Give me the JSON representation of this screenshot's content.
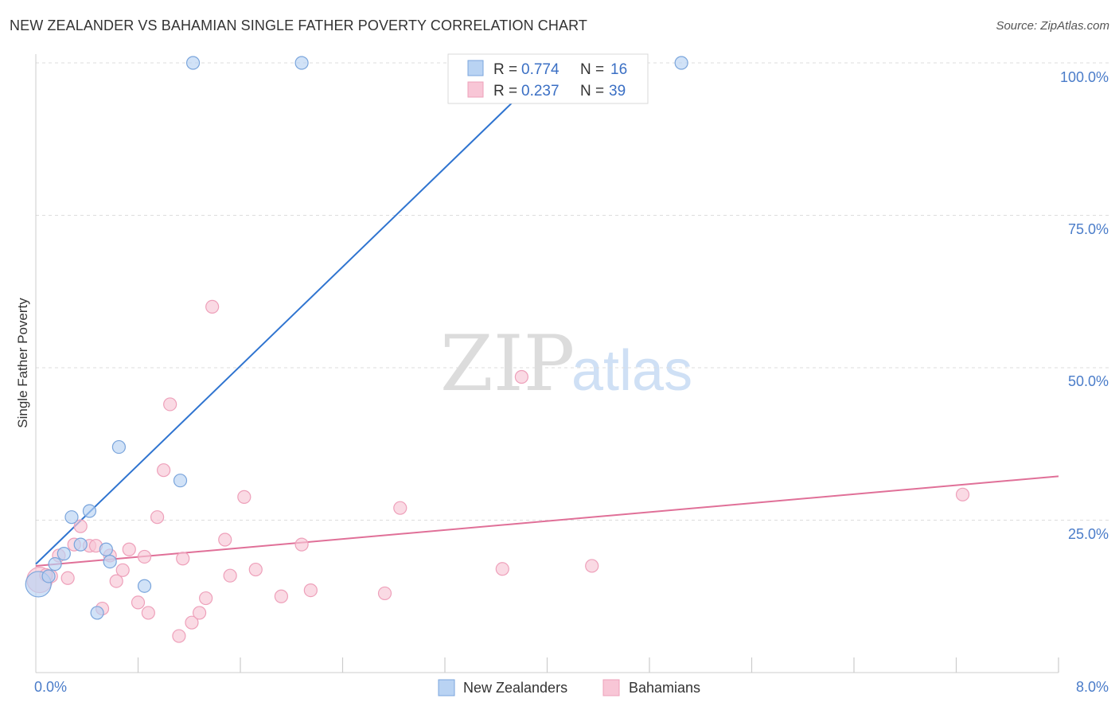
{
  "title": "NEW ZEALANDER VS BAHAMIAN SINGLE FATHER POVERTY CORRELATION CHART",
  "source": "Source: ZipAtlas.com",
  "watermark": {
    "zip": "ZIP",
    "atlas": "atlas"
  },
  "colors": {
    "blue_fill": "#b9d3f3",
    "blue_stroke": "#7aa5dc",
    "blue_line": "#2f74d0",
    "pink_fill": "#f8c6d6",
    "pink_stroke": "#eea0ba",
    "pink_line": "#e07098",
    "grid": "#dddddd",
    "tick_text": "#4a7cc9"
  },
  "legend": {
    "r_label": "R = ",
    "n_label": "N = ",
    "series": [
      {
        "r": "0.774",
        "n": "16"
      },
      {
        "r": "0.237",
        "n": "39"
      }
    ]
  },
  "bottom_legend": [
    "New Zealanders",
    "Bahamians"
  ],
  "chart_data": {
    "type": "scatter",
    "title": "NEW ZEALANDER VS BAHAMIAN SINGLE FATHER POVERTY CORRELATION CHART",
    "xlabel": "",
    "ylabel": "Single Father Poverty",
    "xlim": [
      0,
      8
    ],
    "ylim": [
      0,
      100
    ],
    "x_tick_labels": [
      "0.0%",
      "8.0%"
    ],
    "y_ticks": [
      25,
      50,
      75,
      100
    ],
    "y_tick_labels": [
      "25.0%",
      "50.0%",
      "75.0%",
      "100.0%"
    ],
    "grid": true,
    "series": [
      {
        "name": "New Zealanders",
        "r": 0.774,
        "n": 16,
        "trend": {
          "x": [
            0,
            3.9
          ],
          "y": [
            17.8,
            97
          ]
        },
        "points": [
          {
            "x": 0.02,
            "y": 14.5,
            "big": true
          },
          {
            "x": 0.1,
            "y": 15.8
          },
          {
            "x": 0.15,
            "y": 17.8
          },
          {
            "x": 0.22,
            "y": 19.5
          },
          {
            "x": 0.28,
            "y": 25.5
          },
          {
            "x": 0.35,
            "y": 21.0
          },
          {
            "x": 0.42,
            "y": 26.5
          },
          {
            "x": 0.48,
            "y": 9.8
          },
          {
            "x": 0.55,
            "y": 20.2
          },
          {
            "x": 0.58,
            "y": 18.2
          },
          {
            "x": 0.65,
            "y": 37.0
          },
          {
            "x": 0.85,
            "y": 14.2
          },
          {
            "x": 1.13,
            "y": 31.5
          },
          {
            "x": 1.23,
            "y": 100
          },
          {
            "x": 2.08,
            "y": 100
          },
          {
            "x": 5.05,
            "y": 100
          }
        ]
      },
      {
        "name": "Bahamians",
        "r": 0.237,
        "n": 39,
        "trend": {
          "x": [
            0,
            8
          ],
          "y": [
            17.5,
            32.2
          ]
        },
        "points": [
          {
            "x": 0.03,
            "y": 15.2,
            "big": true
          },
          {
            "x": 0.12,
            "y": 15.8
          },
          {
            "x": 0.18,
            "y": 19.2
          },
          {
            "x": 0.25,
            "y": 15.5
          },
          {
            "x": 0.3,
            "y": 21.0
          },
          {
            "x": 0.35,
            "y": 24.0
          },
          {
            "x": 0.42,
            "y": 20.8
          },
          {
            "x": 0.47,
            "y": 20.8
          },
          {
            "x": 0.52,
            "y": 10.5
          },
          {
            "x": 0.58,
            "y": 19.2
          },
          {
            "x": 0.63,
            "y": 15.0
          },
          {
            "x": 0.68,
            "y": 16.8
          },
          {
            "x": 0.73,
            "y": 20.2
          },
          {
            "x": 0.8,
            "y": 11.5
          },
          {
            "x": 0.85,
            "y": 19.0
          },
          {
            "x": 0.88,
            "y": 9.8
          },
          {
            "x": 0.95,
            "y": 25.5
          },
          {
            "x": 1.0,
            "y": 33.2
          },
          {
            "x": 1.05,
            "y": 44.0
          },
          {
            "x": 1.12,
            "y": 6.0
          },
          {
            "x": 1.15,
            "y": 18.7
          },
          {
            "x": 1.22,
            "y": 8.2
          },
          {
            "x": 1.28,
            "y": 9.8
          },
          {
            "x": 1.33,
            "y": 12.2
          },
          {
            "x": 1.38,
            "y": 60.0
          },
          {
            "x": 1.48,
            "y": 21.8
          },
          {
            "x": 1.52,
            "y": 15.9
          },
          {
            "x": 1.63,
            "y": 28.8
          },
          {
            "x": 1.72,
            "y": 16.9
          },
          {
            "x": 1.92,
            "y": 12.5
          },
          {
            "x": 2.08,
            "y": 21.0
          },
          {
            "x": 2.15,
            "y": 13.5
          },
          {
            "x": 2.73,
            "y": 13.0
          },
          {
            "x": 2.85,
            "y": 27.0
          },
          {
            "x": 3.65,
            "y": 17.0
          },
          {
            "x": 3.8,
            "y": 48.5
          },
          {
            "x": 4.35,
            "y": 17.5
          },
          {
            "x": 7.25,
            "y": 29.2
          },
          {
            "x": 0.08,
            "y": 16.0
          }
        ]
      }
    ]
  }
}
